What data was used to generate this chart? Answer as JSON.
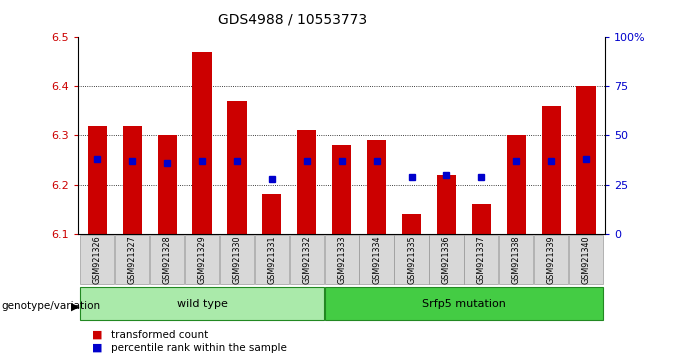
{
  "title": "GDS4988 / 10553773",
  "samples": [
    "GSM921326",
    "GSM921327",
    "GSM921328",
    "GSM921329",
    "GSM921330",
    "GSM921331",
    "GSM921332",
    "GSM921333",
    "GSM921334",
    "GSM921335",
    "GSM921336",
    "GSM921337",
    "GSM921338",
    "GSM921339",
    "GSM921340"
  ],
  "transformed_count": [
    6.32,
    6.32,
    6.3,
    6.47,
    6.37,
    6.18,
    6.31,
    6.28,
    6.29,
    6.14,
    6.22,
    6.16,
    6.3,
    6.36,
    6.4
  ],
  "percentile_rank": [
    38,
    37,
    36,
    37,
    37,
    28,
    37,
    37,
    37,
    29,
    30,
    29,
    37,
    37,
    38
  ],
  "ylim_left": [
    6.1,
    6.5
  ],
  "ylim_right": [
    0,
    100
  ],
  "bar_color": "#cc0000",
  "dot_color": "#0000cc",
  "wild_type_label": "wild type",
  "srf_label": "Srfp5 mutation",
  "genotype_label": "genotype/variation",
  "legend_red": "transformed count",
  "legend_blue": "percentile rank within the sample",
  "wild_type_color": "#aaeaaa",
  "srf_color": "#44cc44",
  "xlabel_color": "#cc0000",
  "ylabel_right_color": "#0000cc",
  "bar_width": 0.55,
  "yright_ticks": [
    0,
    25,
    50,
    75,
    100
  ],
  "yright_labels": [
    "0",
    "25",
    "50",
    "75",
    "100%"
  ],
  "yleft_ticks": [
    6.1,
    6.2,
    6.3,
    6.4,
    6.5
  ],
  "grid_yticks": [
    6.2,
    6.3,
    6.4
  ]
}
